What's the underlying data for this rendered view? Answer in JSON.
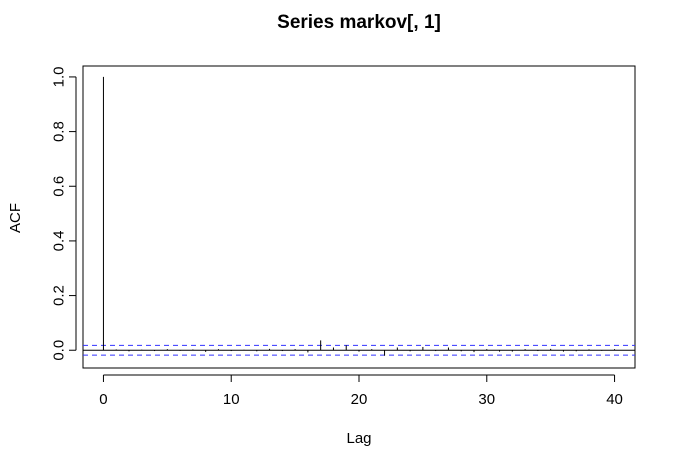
{
  "chart_data": {
    "type": "bar",
    "title": "Series  markov[, 1]",
    "xlabel": "Lag",
    "ylabel": "ACF",
    "xlim": [
      -1.6,
      41.6
    ],
    "ylim": [
      -0.065,
      1.04
    ],
    "x_ticks": [
      0,
      10,
      20,
      30,
      40
    ],
    "x_tick_labels": [
      "0",
      "10",
      "20",
      "30",
      "40"
    ],
    "y_ticks": [
      0.0,
      0.2,
      0.4,
      0.6,
      0.8,
      1.0
    ],
    "y_tick_labels": [
      "0.0",
      "0.2",
      "0.4",
      "0.6",
      "0.8",
      "1.0"
    ],
    "confidence_band": [
      -0.018,
      0.018
    ],
    "confidence_band_color": "#3333ff",
    "grid": false,
    "series": [
      {
        "lags": [
          0,
          1,
          2,
          3,
          4,
          5,
          6,
          7,
          8,
          9,
          10,
          11,
          12,
          13,
          14,
          15,
          16,
          17,
          18,
          19,
          20,
          21,
          22,
          23,
          24,
          25,
          26,
          27,
          28,
          29,
          30,
          31,
          32,
          33,
          34,
          35,
          36,
          37,
          38,
          39,
          40
        ],
        "values": [
          1.0,
          0.003,
          -0.004,
          0.002,
          -0.003,
          0.004,
          -0.002,
          0.003,
          -0.006,
          0.004,
          -0.003,
          0.002,
          -0.004,
          0.005,
          -0.003,
          0.004,
          -0.008,
          0.036,
          0.01,
          0.018,
          -0.005,
          0.004,
          -0.02,
          0.01,
          -0.004,
          0.012,
          -0.003,
          0.01,
          -0.004,
          -0.007,
          0.004,
          -0.005,
          -0.005,
          0.004,
          -0.003,
          0.005,
          -0.005,
          -0.004,
          0.003,
          -0.002,
          0.004
        ]
      }
    ]
  }
}
